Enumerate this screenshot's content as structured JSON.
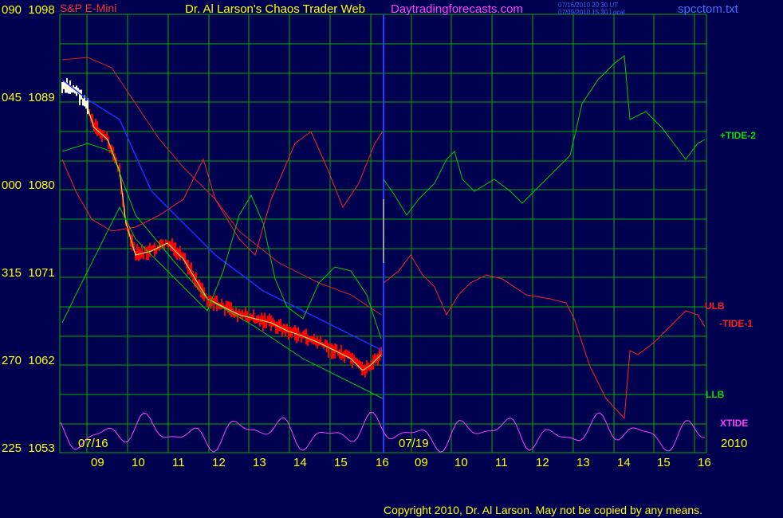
{
  "header": {
    "instrument": "S&P E-Mini",
    "instrument_color": "#ff3030",
    "title": "Dr. Al Larson's Chaos Trader Web",
    "website": "Daytradingforecasts.com",
    "website_color": "#ff40ff",
    "stamp_ut": "07/16/2010 20:30 UT",
    "stamp_local": "07/09/2010 15:30 Local",
    "filename": "spcctom.txt",
    "filename_color": "#4070ff"
  },
  "chart_data": {
    "type": "line",
    "title": "S&P E-Mini",
    "y_axis_labels": [
      {
        "code": "090",
        "price": "1098"
      },
      {
        "code": "045",
        "price": "1089"
      },
      {
        "code": "000",
        "price": "1080"
      },
      {
        "code": "315",
        "price": "1071"
      },
      {
        "code": "270",
        "price": "1062"
      },
      {
        "code": "225",
        "price": "1053"
      }
    ],
    "ylim": [
      1053,
      1098
    ],
    "x_hours": [
      "09",
      "10",
      "11",
      "12",
      "13",
      "14",
      "15",
      "16",
      "09",
      "10",
      "11",
      "12",
      "13",
      "14",
      "15",
      "16"
    ],
    "dates": [
      {
        "label": "07/16"
      },
      {
        "label": "07/19"
      }
    ],
    "year": "2010",
    "grid": true,
    "price_bars_color": "#ff0000",
    "price_bars_early_color": "#ffffff",
    "series": [
      {
        "name": "+TIDE-2",
        "color": "#00e000"
      },
      {
        "name": "ULB",
        "color": "#ff2020"
      },
      {
        "name": "-TIDE-1",
        "color": "#ff2020"
      },
      {
        "name": "LLB",
        "color": "#00e000"
      },
      {
        "name": "XTIDE",
        "color": "#ff40ff"
      }
    ]
  },
  "footer": {
    "copyright": "Copyright 2010, Dr. Al Larson. May not be copied by any means."
  }
}
